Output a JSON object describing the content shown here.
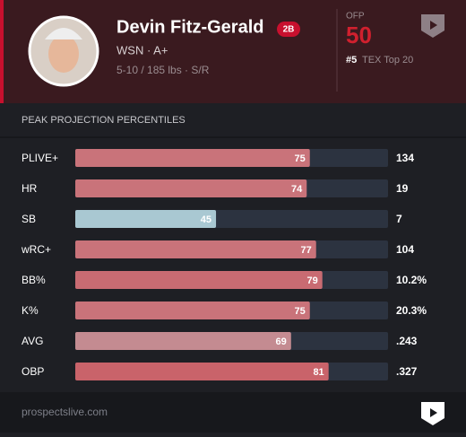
{
  "player": {
    "name": "Devin Fitz-Gerald",
    "position": "2B",
    "team_level": "WSN · A+",
    "bio": "5-10 / 185 lbs · S/R"
  },
  "ofp": {
    "label": "OFP",
    "value": 50,
    "rank": "#5",
    "rank_label": "TEX Top 20"
  },
  "section_title": "PEAK PROJECTION PERCENTILES",
  "footer": "prospectslive.com",
  "chart_data": {
    "type": "bar",
    "orientation": "horizontal",
    "categories": [
      "PLIVE+",
      "HR",
      "SB",
      "wRC+",
      "BB%",
      "K%",
      "AVG",
      "OBP"
    ],
    "values": [
      75,
      74,
      45,
      77,
      79,
      75,
      69,
      81
    ],
    "colors": [
      "#c9737a",
      "#c9737a",
      "#a9c8d2",
      "#c9737a",
      "#c96b72",
      "#c9737a",
      "#c48b91",
      "#c9636a"
    ],
    "stats": [
      "134",
      "19",
      "7",
      "104",
      "10.2%",
      "20.3%",
      ".243",
      ".327"
    ],
    "xlim": [
      0,
      100
    ],
    "track_color": "#2c3340"
  }
}
